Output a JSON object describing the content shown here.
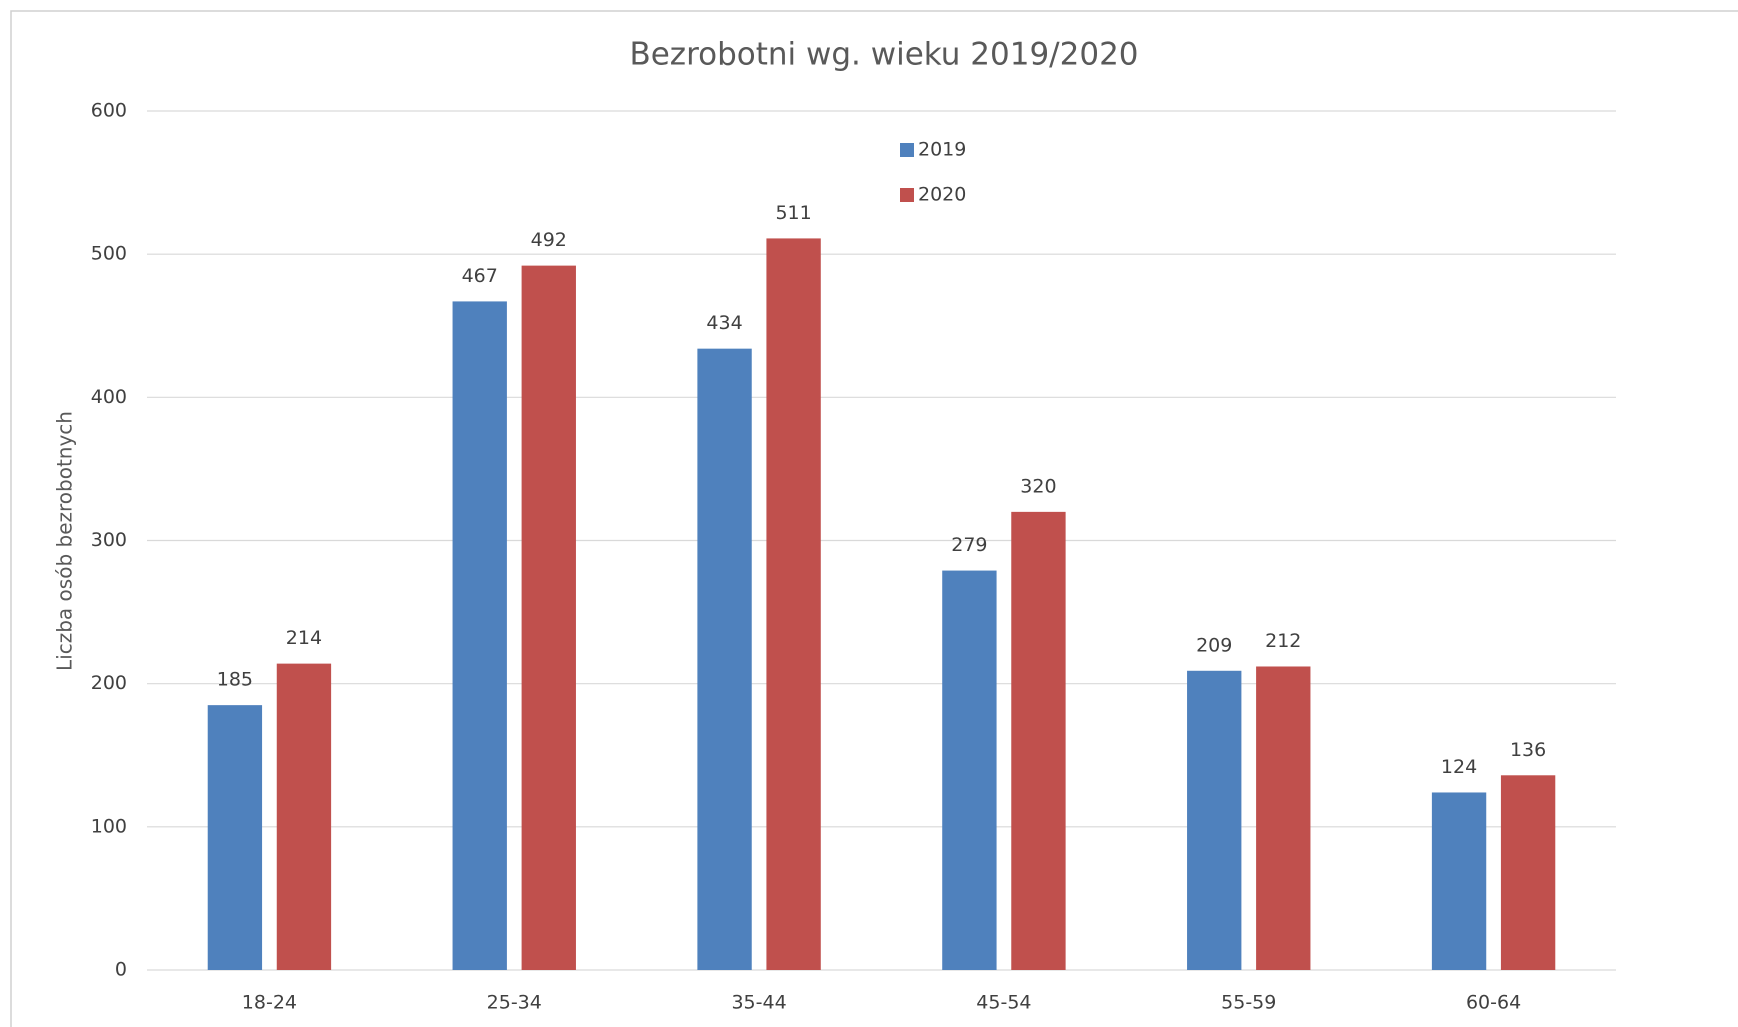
{
  "chart_data": {
    "type": "bar",
    "title": "Bezrobotni wg. wieku 2019/2020",
    "y_label": "Liczba osób bezrobotnych",
    "categories": [
      "18-24",
      "25-34",
      "35-44",
      "45-54",
      "55-59",
      "60-64"
    ],
    "series": [
      {
        "name": "2019",
        "color": "#4f81bd",
        "values": [
          185,
          467,
          434,
          279,
          209,
          124
        ]
      },
      {
        "name": "2020",
        "color": "#c0504d",
        "values": [
          214,
          492,
          511,
          320,
          212,
          136
        ]
      }
    ],
    "ylim": [
      0,
      600
    ],
    "yticks": [
      0,
      100,
      200,
      300,
      400,
      500,
      600
    ],
    "grid": true,
    "legend": "top"
  }
}
